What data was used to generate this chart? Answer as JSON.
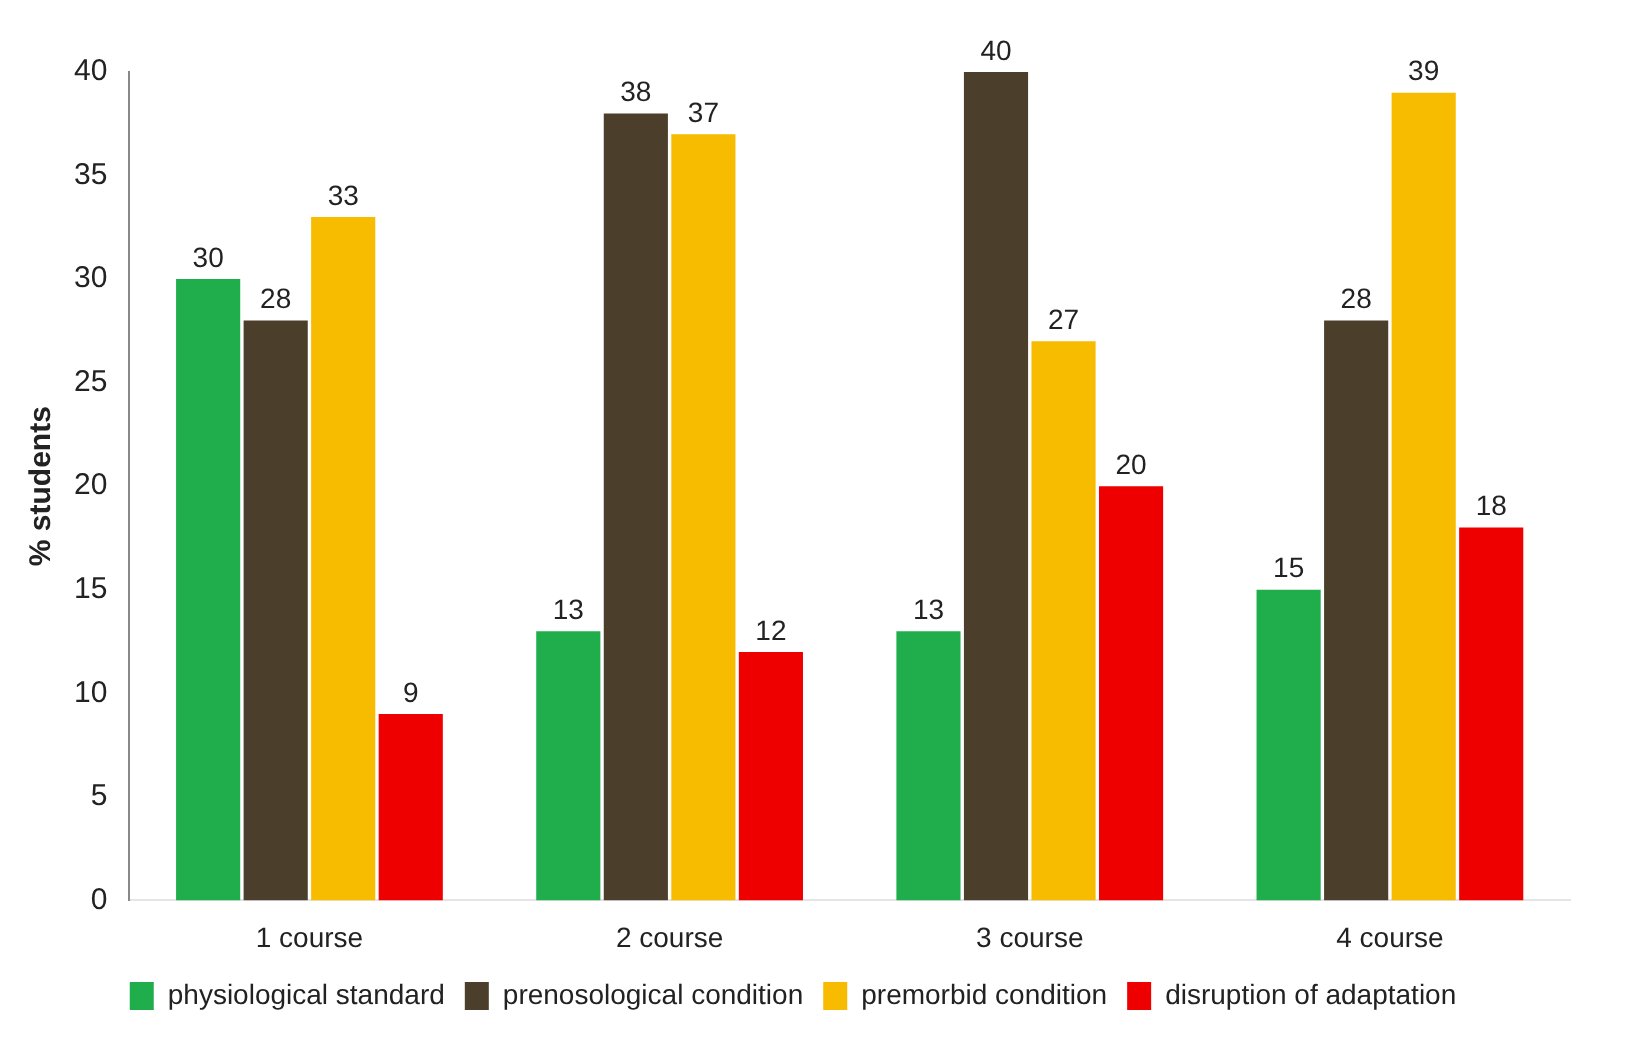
{
  "chart_data": {
    "type": "bar",
    "ylabel": "% students",
    "categories": [
      "1 course",
      "2 course",
      "3 course",
      "4 course"
    ],
    "series": [
      {
        "name": "physiological standard",
        "color": "#1fae4b",
        "values": [
          30,
          13,
          13,
          15
        ]
      },
      {
        "name": "prenosological condition",
        "color": "#4b3f2b",
        "values": [
          28,
          38,
          40,
          28
        ]
      },
      {
        "name": "premorbid condition",
        "color": "#f7bb00",
        "values": [
          33,
          37,
          27,
          39
        ]
      },
      {
        "name": "disruption of adaptation",
        "color": "#ee0000",
        "values": [
          9,
          12,
          20,
          18
        ]
      }
    ],
    "ylim": [
      0,
      40
    ],
    "yticks": [
      0,
      5,
      10,
      15,
      20,
      25,
      30,
      35,
      40
    ],
    "grid": false,
    "legend": "bottom",
    "data_labels": true
  }
}
